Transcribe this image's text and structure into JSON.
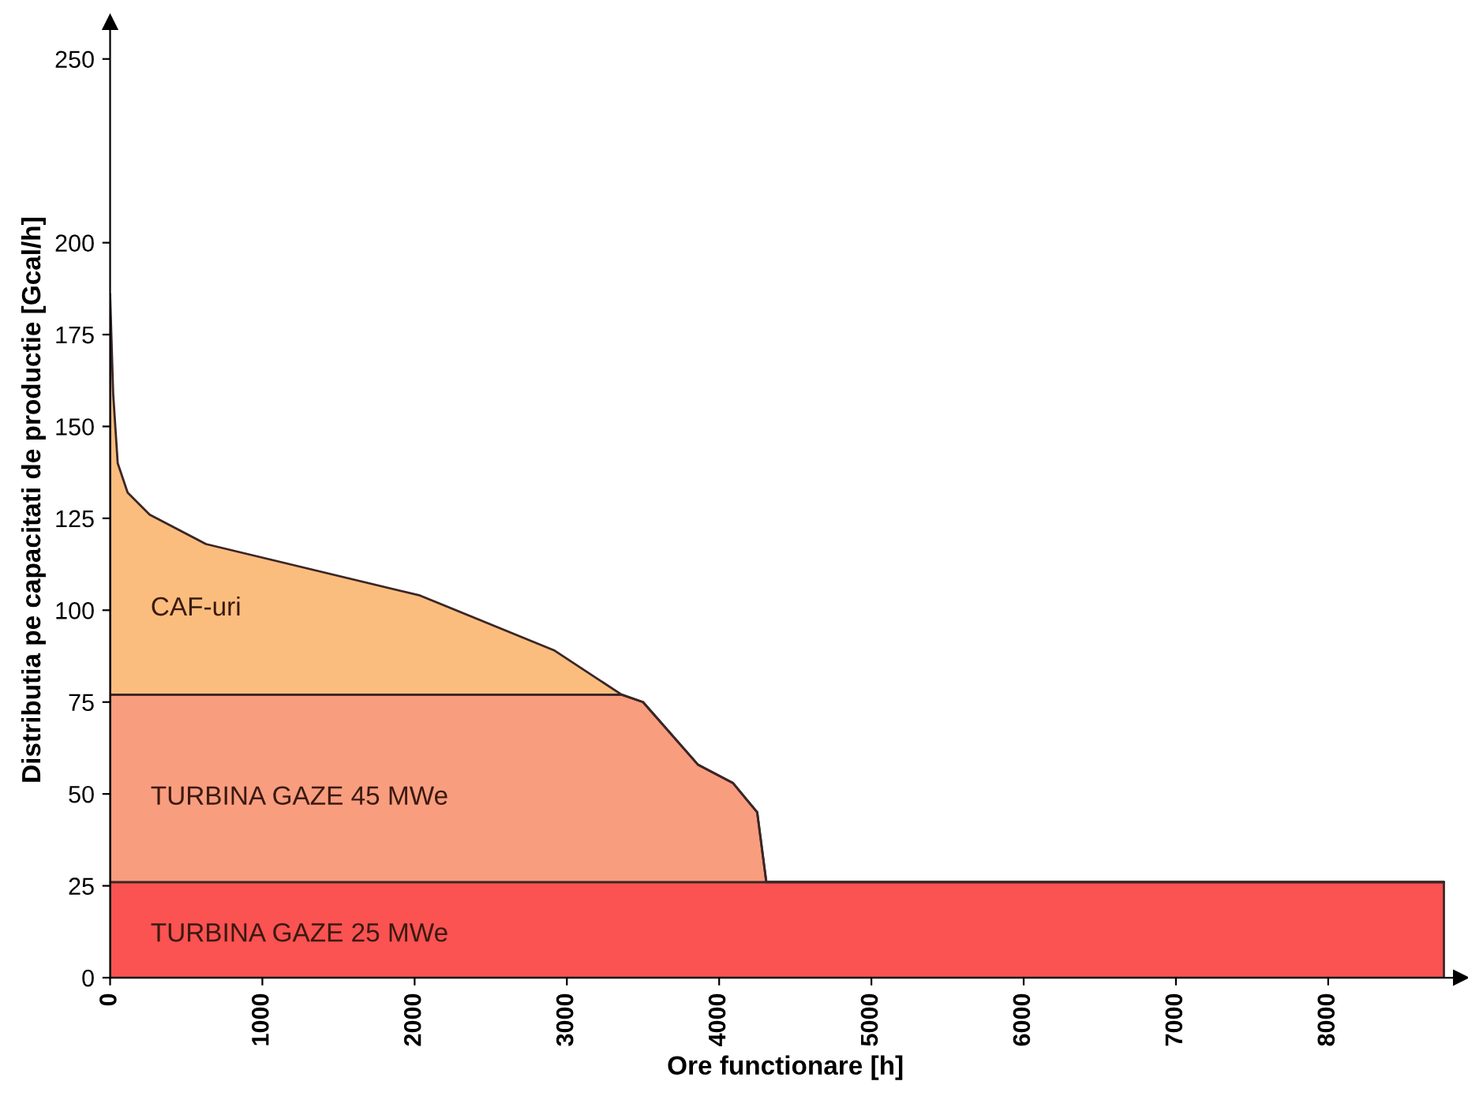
{
  "chart_data": {
    "type": "area",
    "stacked": true,
    "xlabel": "Ore functionare [h]",
    "ylabel": "Distributia pe capacitati de productie [Gcal/h]",
    "x": [
      0,
      20,
      50,
      115,
      260,
      630,
      2035,
      2920,
      3360,
      3500,
      3860,
      4090,
      4250,
      4310,
      8760
    ],
    "series": [
      {
        "name": "TURBINA GAZE 25 MWe",
        "color": "#fb5252",
        "values": [
          26,
          26,
          26,
          26,
          26,
          26,
          26,
          26,
          26,
          26,
          26,
          26,
          26,
          26,
          26
        ]
      },
      {
        "name": "TURBINA GAZE 45 MWe",
        "color": "#f99d7f",
        "values": [
          51,
          51,
          51,
          51,
          51,
          51,
          51,
          51,
          51,
          49,
          32,
          27,
          19,
          0,
          0
        ]
      },
      {
        "name": "CAF-uri",
        "color": "#fbbd7e",
        "values": [
          109,
          82,
          63,
          55,
          49,
          41,
          27,
          12,
          0,
          0,
          0,
          0,
          0,
          0,
          0
        ]
      }
    ],
    "xlim": [
      0,
      8870
    ],
    "xticks": [
      0,
      1000,
      2000,
      3000,
      4000,
      5000,
      6000,
      7000,
      8000
    ],
    "ylim": [
      0,
      260
    ],
    "yticks": [
      0,
      25,
      50,
      75,
      100,
      125,
      150,
      175,
      200,
      250
    ],
    "grid": false,
    "legend": false
  }
}
